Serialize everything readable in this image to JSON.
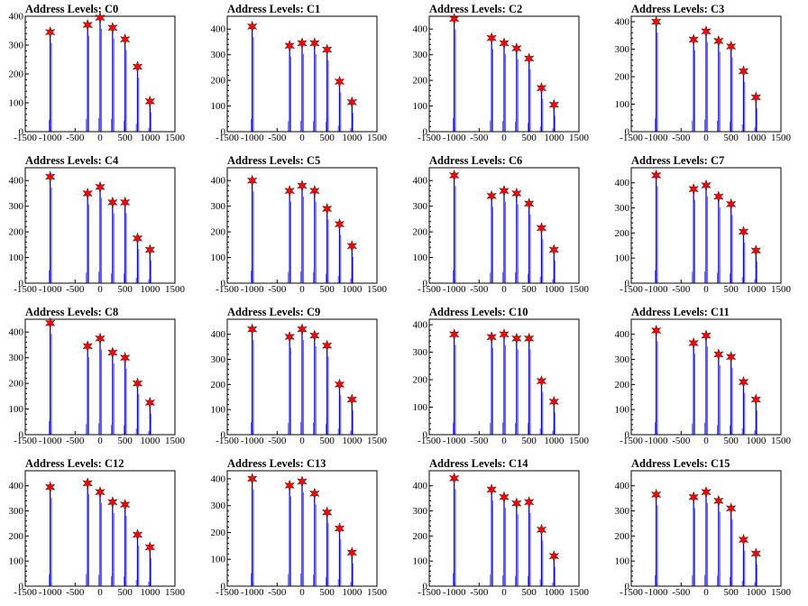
{
  "figure": {
    "background": "#ffffff",
    "bar_color": "#0000ff",
    "marker_color": "#ff0000"
  },
  "chart_data": [
    {
      "type": "bar",
      "title": "Address Levels: C0",
      "xlim": [
        -1500,
        1500
      ],
      "ylim": [
        0,
        400
      ],
      "xticks": [
        -1500,
        -1000,
        -500,
        0,
        500,
        1000,
        1500
      ],
      "yticks": [
        0,
        100,
        200,
        300,
        400
      ],
      "peaks": [
        {
          "x": -1000,
          "y": 345
        },
        {
          "x": -250,
          "y": 370
        },
        {
          "x": 0,
          "y": 395
        },
        {
          "x": 250,
          "y": 360
        },
        {
          "x": 500,
          "y": 320
        },
        {
          "x": 750,
          "y": 225
        },
        {
          "x": 1000,
          "y": 105
        }
      ]
    },
    {
      "type": "bar",
      "title": "Address Levels: C1",
      "xlim": [
        -1500,
        1500
      ],
      "ylim": [
        0,
        450
      ],
      "xticks": [
        -1500,
        -1000,
        -500,
        0,
        500,
        1000,
        1500
      ],
      "yticks": [
        0,
        100,
        200,
        300,
        400
      ],
      "peaks": [
        {
          "x": -1000,
          "y": 410
        },
        {
          "x": -250,
          "y": 335
        },
        {
          "x": 0,
          "y": 345
        },
        {
          "x": 250,
          "y": 345
        },
        {
          "x": 500,
          "y": 320
        },
        {
          "x": 750,
          "y": 195
        },
        {
          "x": 1000,
          "y": 115
        }
      ]
    },
    {
      "type": "bar",
      "title": "Address Levels: C2",
      "xlim": [
        -1500,
        1500
      ],
      "ylim": [
        0,
        450
      ],
      "xticks": [
        -1500,
        -1000,
        -500,
        0,
        500,
        1000,
        1500
      ],
      "yticks": [
        0,
        100,
        200,
        300,
        400
      ],
      "peaks": [
        {
          "x": -1000,
          "y": 440
        },
        {
          "x": -250,
          "y": 365
        },
        {
          "x": 0,
          "y": 345
        },
        {
          "x": 250,
          "y": 325
        },
        {
          "x": 500,
          "y": 285
        },
        {
          "x": 750,
          "y": 170
        },
        {
          "x": 1000,
          "y": 105
        }
      ]
    },
    {
      "type": "bar",
      "title": "Address Levels: C3",
      "xlim": [
        -1500,
        1500
      ],
      "ylim": [
        0,
        420
      ],
      "xticks": [
        -1500,
        -1000,
        -500,
        0,
        500,
        1000,
        1500
      ],
      "yticks": [
        0,
        100,
        200,
        300,
        400
      ],
      "peaks": [
        {
          "x": -1000,
          "y": 400
        },
        {
          "x": -250,
          "y": 335
        },
        {
          "x": 0,
          "y": 365
        },
        {
          "x": 250,
          "y": 330
        },
        {
          "x": 500,
          "y": 310
        },
        {
          "x": 750,
          "y": 220
        },
        {
          "x": 1000,
          "y": 125
        }
      ]
    },
    {
      "type": "bar",
      "title": "Address Levels: C4",
      "xlim": [
        -1500,
        1500
      ],
      "ylim": [
        0,
        450
      ],
      "xticks": [
        -1500,
        -1000,
        -500,
        0,
        500,
        1000,
        1500
      ],
      "yticks": [
        0,
        100,
        200,
        300,
        400
      ],
      "peaks": [
        {
          "x": -1000,
          "y": 415
        },
        {
          "x": -250,
          "y": 350
        },
        {
          "x": 0,
          "y": 375
        },
        {
          "x": 250,
          "y": 315
        },
        {
          "x": 500,
          "y": 315
        },
        {
          "x": 750,
          "y": 175
        },
        {
          "x": 1000,
          "y": 130
        }
      ]
    },
    {
      "type": "bar",
      "title": "Address Levels: C5",
      "xlim": [
        -1500,
        1500
      ],
      "ylim": [
        0,
        450
      ],
      "xticks": [
        -1500,
        -1000,
        -500,
        0,
        500,
        1000,
        1500
      ],
      "yticks": [
        0,
        100,
        200,
        300,
        400
      ],
      "peaks": [
        {
          "x": -1000,
          "y": 400
        },
        {
          "x": -250,
          "y": 360
        },
        {
          "x": 0,
          "y": 380
        },
        {
          "x": 250,
          "y": 360
        },
        {
          "x": 500,
          "y": 290
        },
        {
          "x": 750,
          "y": 230
        },
        {
          "x": 1000,
          "y": 145
        }
      ]
    },
    {
      "type": "bar",
      "title": "Address Levels: C6",
      "xlim": [
        -1500,
        1500
      ],
      "ylim": [
        0,
        450
      ],
      "xticks": [
        -1500,
        -1000,
        -500,
        0,
        500,
        1000,
        1500
      ],
      "yticks": [
        0,
        100,
        200,
        300,
        400
      ],
      "peaks": [
        {
          "x": -1000,
          "y": 420
        },
        {
          "x": -250,
          "y": 340
        },
        {
          "x": 0,
          "y": 360
        },
        {
          "x": 250,
          "y": 350
        },
        {
          "x": 500,
          "y": 310
        },
        {
          "x": 750,
          "y": 215
        },
        {
          "x": 1000,
          "y": 130
        }
      ]
    },
    {
      "type": "bar",
      "title": "Address Levels: C7",
      "xlim": [
        -1500,
        1500
      ],
      "ylim": [
        0,
        460
      ],
      "xticks": [
        -1500,
        -1000,
        -500,
        0,
        500,
        1000,
        1500
      ],
      "yticks": [
        0,
        100,
        200,
        300,
        400
      ],
      "peaks": [
        {
          "x": -1000,
          "y": 430
        },
        {
          "x": -250,
          "y": 375
        },
        {
          "x": 0,
          "y": 390
        },
        {
          "x": 250,
          "y": 345
        },
        {
          "x": 500,
          "y": 315
        },
        {
          "x": 750,
          "y": 205
        },
        {
          "x": 1000,
          "y": 130
        }
      ]
    },
    {
      "type": "bar",
      "title": "Address Levels: C8",
      "xlim": [
        -1500,
        1500
      ],
      "ylim": [
        0,
        450
      ],
      "xticks": [
        -1500,
        -1000,
        -500,
        0,
        500,
        1000,
        1500
      ],
      "yticks": [
        0,
        100,
        200,
        300,
        400
      ],
      "peaks": [
        {
          "x": -1000,
          "y": 435
        },
        {
          "x": -250,
          "y": 345
        },
        {
          "x": 0,
          "y": 375
        },
        {
          "x": 250,
          "y": 320
        },
        {
          "x": 500,
          "y": 300
        },
        {
          "x": 750,
          "y": 200
        },
        {
          "x": 1000,
          "y": 125
        }
      ]
    },
    {
      "type": "bar",
      "title": "Address Levels: C9",
      "xlim": [
        -1500,
        1500
      ],
      "ylim": [
        0,
        460
      ],
      "xticks": [
        -1500,
        -1000,
        -500,
        0,
        500,
        1000,
        1500
      ],
      "yticks": [
        0,
        100,
        200,
        300,
        400
      ],
      "peaks": [
        {
          "x": -1000,
          "y": 420
        },
        {
          "x": -250,
          "y": 390
        },
        {
          "x": 0,
          "y": 420
        },
        {
          "x": 250,
          "y": 395
        },
        {
          "x": 500,
          "y": 355
        },
        {
          "x": 750,
          "y": 200
        },
        {
          "x": 1000,
          "y": 140
        }
      ]
    },
    {
      "type": "bar",
      "title": "Address Levels: C10",
      "xlim": [
        -1500,
        1500
      ],
      "ylim": [
        0,
        420
      ],
      "xticks": [
        -1500,
        -1000,
        -500,
        0,
        500,
        1000,
        1500
      ],
      "yticks": [
        0,
        100,
        200,
        300,
        400
      ],
      "peaks": [
        {
          "x": -1000,
          "y": 365
        },
        {
          "x": -250,
          "y": 355
        },
        {
          "x": 0,
          "y": 365
        },
        {
          "x": 250,
          "y": 350
        },
        {
          "x": 500,
          "y": 350
        },
        {
          "x": 750,
          "y": 195
        },
        {
          "x": 1000,
          "y": 120
        }
      ]
    },
    {
      "type": "bar",
      "title": "Address Levels: C11",
      "xlim": [
        -1500,
        1500
      ],
      "ylim": [
        0,
        460
      ],
      "xticks": [
        -1500,
        -1000,
        -500,
        0,
        500,
        1000,
        1500
      ],
      "yticks": [
        0,
        100,
        200,
        300,
        400
      ],
      "peaks": [
        {
          "x": -1000,
          "y": 415
        },
        {
          "x": -250,
          "y": 365
        },
        {
          "x": 0,
          "y": 395
        },
        {
          "x": 250,
          "y": 320
        },
        {
          "x": 500,
          "y": 310
        },
        {
          "x": 750,
          "y": 210
        },
        {
          "x": 1000,
          "y": 140
        }
      ]
    },
    {
      "type": "bar",
      "title": "Address Levels: C12",
      "xlim": [
        -1500,
        1500
      ],
      "ylim": [
        0,
        460
      ],
      "xticks": [
        -1500,
        -1000,
        -500,
        0,
        500,
        1000,
        1500
      ],
      "yticks": [
        0,
        100,
        200,
        300,
        400
      ],
      "peaks": [
        {
          "x": -1000,
          "y": 395
        },
        {
          "x": -250,
          "y": 410
        },
        {
          "x": 0,
          "y": 375
        },
        {
          "x": 250,
          "y": 335
        },
        {
          "x": 500,
          "y": 325
        },
        {
          "x": 750,
          "y": 205
        },
        {
          "x": 1000,
          "y": 155
        }
      ]
    },
    {
      "type": "bar",
      "title": "Address Levels: C13",
      "xlim": [
        -1500,
        1500
      ],
      "ylim": [
        0,
        430
      ],
      "xticks": [
        -1500,
        -1000,
        -500,
        0,
        500,
        1000,
        1500
      ],
      "yticks": [
        0,
        100,
        200,
        300,
        400
      ],
      "peaks": [
        {
          "x": -1000,
          "y": 400
        },
        {
          "x": -250,
          "y": 375
        },
        {
          "x": 0,
          "y": 390
        },
        {
          "x": 250,
          "y": 345
        },
        {
          "x": 500,
          "y": 275
        },
        {
          "x": 750,
          "y": 215
        },
        {
          "x": 1000,
          "y": 125
        }
      ]
    },
    {
      "type": "bar",
      "title": "Address Levels: C14",
      "xlim": [
        -1500,
        1500
      ],
      "ylim": [
        0,
        460
      ],
      "xticks": [
        -1500,
        -1000,
        -500,
        0,
        500,
        1000,
        1500
      ],
      "yticks": [
        0,
        100,
        200,
        300,
        400
      ],
      "peaks": [
        {
          "x": -1000,
          "y": 430
        },
        {
          "x": -250,
          "y": 385
        },
        {
          "x": 0,
          "y": 355
        },
        {
          "x": 250,
          "y": 330
        },
        {
          "x": 500,
          "y": 335
        },
        {
          "x": 750,
          "y": 225
        },
        {
          "x": 1000,
          "y": 120
        }
      ]
    },
    {
      "type": "bar",
      "title": "Address Levels: C15",
      "xlim": [
        -1500,
        1500
      ],
      "ylim": [
        0,
        460
      ],
      "xticks": [
        -1500,
        -1000,
        -500,
        0,
        500,
        1000,
        1500
      ],
      "yticks": [
        0,
        100,
        200,
        300,
        400
      ],
      "peaks": [
        {
          "x": -1000,
          "y": 365
        },
        {
          "x": -250,
          "y": 355
        },
        {
          "x": 0,
          "y": 375
        },
        {
          "x": 250,
          "y": 340
        },
        {
          "x": 500,
          "y": 310
        },
        {
          "x": 750,
          "y": 185
        },
        {
          "x": 1000,
          "y": 130
        }
      ]
    }
  ]
}
